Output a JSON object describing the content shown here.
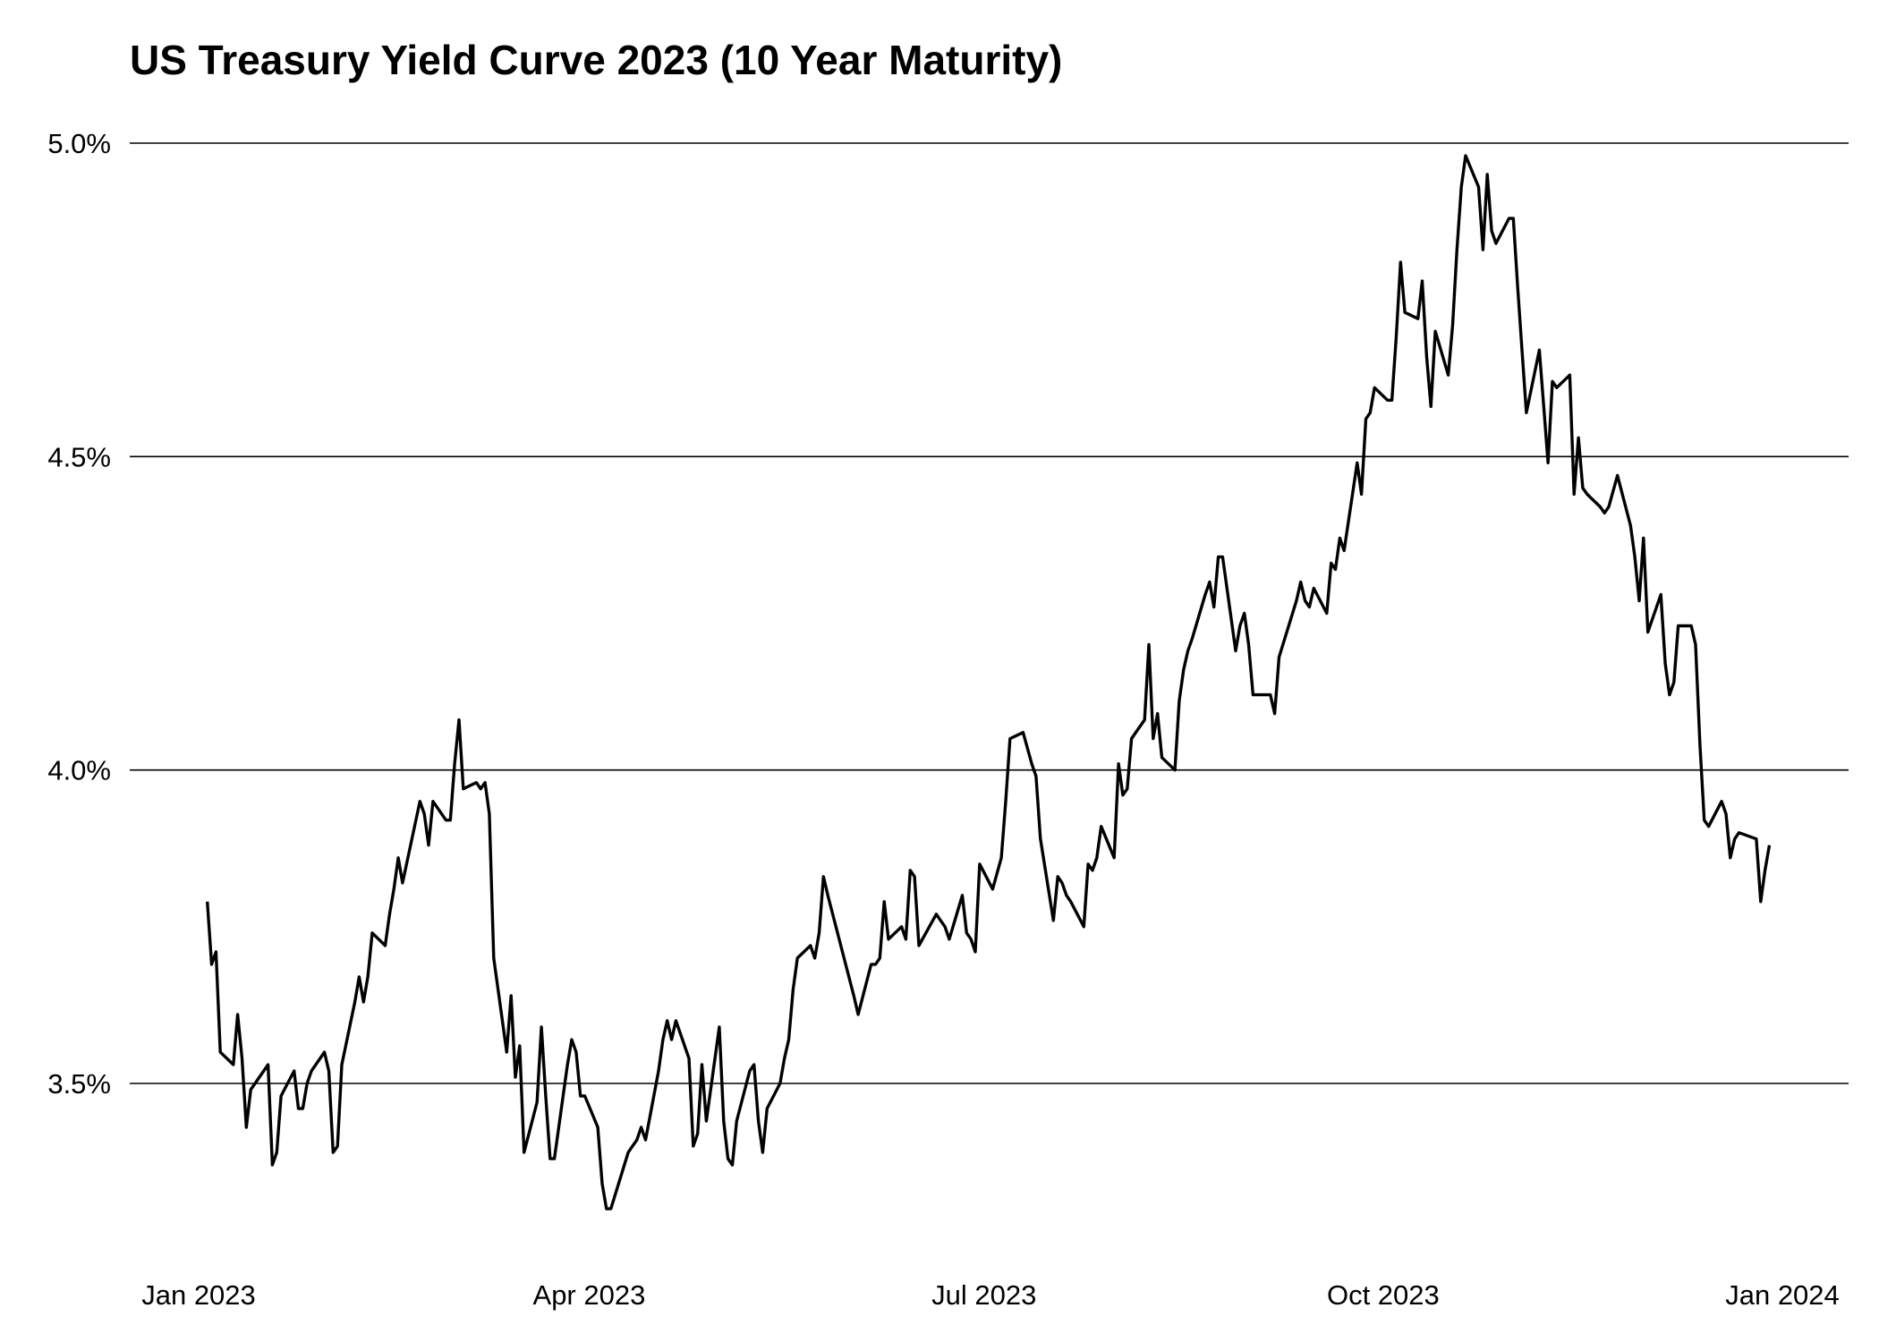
{
  "chart_data": {
    "type": "line",
    "title": "US Treasury Yield Curve 2023 (10 Year Maturity)",
    "xlabel": "",
    "ylabel": "",
    "x_range": [
      "2023-01-01",
      "2024-01-01"
    ],
    "ylim": [
      3.29,
      5.02
    ],
    "grid": "horizontal",
    "line_color": "#000000",
    "x_ticks": [
      {
        "date": "2023-01-01",
        "label": "Jan 2023"
      },
      {
        "date": "2023-04-01",
        "label": "Apr 2023"
      },
      {
        "date": "2023-07-01",
        "label": "Jul 2023"
      },
      {
        "date": "2023-10-01",
        "label": "Oct 2023"
      },
      {
        "date": "2024-01-01",
        "label": "Jan 2024"
      }
    ],
    "y_ticks": [
      {
        "value": 3.5,
        "label": "3.5%"
      },
      {
        "value": 4.0,
        "label": "4.0%"
      },
      {
        "value": 4.5,
        "label": "4.5%"
      },
      {
        "value": 5.0,
        "label": "5.0%"
      }
    ],
    "series": [
      {
        "points": [
          [
            "2023-01-03",
            3.79
          ],
          [
            "2023-01-04",
            3.69
          ],
          [
            "2023-01-05",
            3.71
          ],
          [
            "2023-01-06",
            3.55
          ],
          [
            "2023-01-09",
            3.53
          ],
          [
            "2023-01-10",
            3.61
          ],
          [
            "2023-01-11",
            3.54
          ],
          [
            "2023-01-12",
            3.43
          ],
          [
            "2023-01-13",
            3.49
          ],
          [
            "2023-01-17",
            3.53
          ],
          [
            "2023-01-18",
            3.37
          ],
          [
            "2023-01-19",
            3.39
          ],
          [
            "2023-01-20",
            3.48
          ],
          [
            "2023-01-23",
            3.52
          ],
          [
            "2023-01-24",
            3.46
          ],
          [
            "2023-01-25",
            3.46
          ],
          [
            "2023-01-26",
            3.5
          ],
          [
            "2023-01-27",
            3.52
          ],
          [
            "2023-01-30",
            3.55
          ],
          [
            "2023-01-31",
            3.52
          ],
          [
            "2023-02-01",
            3.39
          ],
          [
            "2023-02-02",
            3.4
          ],
          [
            "2023-02-03",
            3.53
          ],
          [
            "2023-02-06",
            3.63
          ],
          [
            "2023-02-07",
            3.67
          ],
          [
            "2023-02-08",
            3.63
          ],
          [
            "2023-02-09",
            3.67
          ],
          [
            "2023-02-10",
            3.74
          ],
          [
            "2023-02-13",
            3.72
          ],
          [
            "2023-02-14",
            3.77
          ],
          [
            "2023-02-15",
            3.81
          ],
          [
            "2023-02-16",
            3.86
          ],
          [
            "2023-02-17",
            3.82
          ],
          [
            "2023-02-21",
            3.95
          ],
          [
            "2023-02-22",
            3.93
          ],
          [
            "2023-02-23",
            3.88
          ],
          [
            "2023-02-24",
            3.95
          ],
          [
            "2023-02-27",
            3.92
          ],
          [
            "2023-02-28",
            3.92
          ],
          [
            "2023-03-01",
            4.01
          ],
          [
            "2023-03-02",
            4.08
          ],
          [
            "2023-03-03",
            3.97
          ],
          [
            "2023-03-06",
            3.98
          ],
          [
            "2023-03-07",
            3.97
          ],
          [
            "2023-03-08",
            3.98
          ],
          [
            "2023-03-09",
            3.93
          ],
          [
            "2023-03-10",
            3.7
          ],
          [
            "2023-03-13",
            3.55
          ],
          [
            "2023-03-14",
            3.64
          ],
          [
            "2023-03-15",
            3.51
          ],
          [
            "2023-03-16",
            3.56
          ],
          [
            "2023-03-17",
            3.39
          ],
          [
            "2023-03-20",
            3.47
          ],
          [
            "2023-03-21",
            3.59
          ],
          [
            "2023-03-22",
            3.48
          ],
          [
            "2023-03-23",
            3.38
          ],
          [
            "2023-03-24",
            3.38
          ],
          [
            "2023-03-27",
            3.53
          ],
          [
            "2023-03-28",
            3.57
          ],
          [
            "2023-03-29",
            3.55
          ],
          [
            "2023-03-30",
            3.48
          ],
          [
            "2023-03-31",
            3.48
          ],
          [
            "2023-04-03",
            3.43
          ],
          [
            "2023-04-04",
            3.34
          ],
          [
            "2023-04-05",
            3.3
          ],
          [
            "2023-04-06",
            3.3
          ],
          [
            "2023-04-10",
            3.39
          ],
          [
            "2023-04-11",
            3.4
          ],
          [
            "2023-04-12",
            3.41
          ],
          [
            "2023-04-13",
            3.43
          ],
          [
            "2023-04-14",
            3.41
          ],
          [
            "2023-04-17",
            3.52
          ],
          [
            "2023-04-18",
            3.57
          ],
          [
            "2023-04-19",
            3.6
          ],
          [
            "2023-04-20",
            3.57
          ],
          [
            "2023-04-21",
            3.6
          ],
          [
            "2023-04-24",
            3.54
          ],
          [
            "2023-04-25",
            3.4
          ],
          [
            "2023-04-26",
            3.42
          ],
          [
            "2023-04-27",
            3.53
          ],
          [
            "2023-04-28",
            3.44
          ],
          [
            "2023-05-01",
            3.59
          ],
          [
            "2023-05-02",
            3.44
          ],
          [
            "2023-05-03",
            3.38
          ],
          [
            "2023-05-04",
            3.37
          ],
          [
            "2023-05-05",
            3.44
          ],
          [
            "2023-05-08",
            3.52
          ],
          [
            "2023-05-09",
            3.53
          ],
          [
            "2023-05-10",
            3.44
          ],
          [
            "2023-05-11",
            3.39
          ],
          [
            "2023-05-12",
            3.46
          ],
          [
            "2023-05-15",
            3.5
          ],
          [
            "2023-05-16",
            3.54
          ],
          [
            "2023-05-17",
            3.57
          ],
          [
            "2023-05-18",
            3.65
          ],
          [
            "2023-05-19",
            3.7
          ],
          [
            "2023-05-22",
            3.72
          ],
          [
            "2023-05-23",
            3.7
          ],
          [
            "2023-05-24",
            3.74
          ],
          [
            "2023-05-25",
            3.83
          ],
          [
            "2023-05-26",
            3.8
          ],
          [
            "2023-06-01",
            3.64
          ],
          [
            "2023-06-02",
            3.61
          ],
          [
            "2023-06-05",
            3.69
          ],
          [
            "2023-06-06",
            3.69
          ],
          [
            "2023-06-07",
            3.7
          ],
          [
            "2023-06-08",
            3.79
          ],
          [
            "2023-06-09",
            3.73
          ],
          [
            "2023-06-12",
            3.75
          ],
          [
            "2023-06-13",
            3.73
          ],
          [
            "2023-06-14",
            3.84
          ],
          [
            "2023-06-15",
            3.83
          ],
          [
            "2023-06-16",
            3.72
          ],
          [
            "2023-06-20",
            3.77
          ],
          [
            "2023-06-21",
            3.76
          ],
          [
            "2023-06-22",
            3.75
          ],
          [
            "2023-06-23",
            3.73
          ],
          [
            "2023-06-26",
            3.8
          ],
          [
            "2023-06-27",
            3.74
          ],
          [
            "2023-06-28",
            3.73
          ],
          [
            "2023-06-29",
            3.71
          ],
          [
            "2023-06-30",
            3.85
          ],
          [
            "2023-07-03",
            3.81
          ],
          [
            "2023-07-05",
            3.86
          ],
          [
            "2023-07-06",
            3.95
          ],
          [
            "2023-07-07",
            4.05
          ],
          [
            "2023-07-10",
            4.06
          ],
          [
            "2023-07-12",
            4.01
          ],
          [
            "2023-07-13",
            3.99
          ],
          [
            "2023-07-14",
            3.89
          ],
          [
            "2023-07-17",
            3.76
          ],
          [
            "2023-07-18",
            3.83
          ],
          [
            "2023-07-19",
            3.82
          ],
          [
            "2023-07-20",
            3.8
          ],
          [
            "2023-07-21",
            3.79
          ],
          [
            "2023-07-24",
            3.75
          ],
          [
            "2023-07-25",
            3.85
          ],
          [
            "2023-07-26",
            3.84
          ],
          [
            "2023-07-27",
            3.86
          ],
          [
            "2023-07-28",
            3.91
          ],
          [
            "2023-07-31",
            3.86
          ],
          [
            "2023-08-01",
            4.01
          ],
          [
            "2023-08-02",
            3.96
          ],
          [
            "2023-08-03",
            3.97
          ],
          [
            "2023-08-04",
            4.05
          ],
          [
            "2023-08-07",
            4.08
          ],
          [
            "2023-08-08",
            4.2
          ],
          [
            "2023-08-09",
            4.05
          ],
          [
            "2023-08-10",
            4.09
          ],
          [
            "2023-08-11",
            4.02
          ],
          [
            "2023-08-14",
            4.0
          ],
          [
            "2023-08-15",
            4.11
          ],
          [
            "2023-08-16",
            4.16
          ],
          [
            "2023-08-17",
            4.19
          ],
          [
            "2023-08-18",
            4.21
          ],
          [
            "2023-08-21",
            4.28
          ],
          [
            "2023-08-22",
            4.3
          ],
          [
            "2023-08-23",
            4.26
          ],
          [
            "2023-08-24",
            4.34
          ],
          [
            "2023-08-25",
            4.34
          ],
          [
            "2023-08-28",
            4.19
          ],
          [
            "2023-08-29",
            4.23
          ],
          [
            "2023-08-30",
            4.25
          ],
          [
            "2023-08-31",
            4.2
          ],
          [
            "2023-09-01",
            4.12
          ],
          [
            "2023-09-05",
            4.12
          ],
          [
            "2023-09-06",
            4.09
          ],
          [
            "2023-09-07",
            4.18
          ],
          [
            "2023-09-11",
            4.27
          ],
          [
            "2023-09-12",
            4.3
          ],
          [
            "2023-09-13",
            4.27
          ],
          [
            "2023-09-14",
            4.26
          ],
          [
            "2023-09-15",
            4.29
          ],
          [
            "2023-09-18",
            4.25
          ],
          [
            "2023-09-19",
            4.33
          ],
          [
            "2023-09-20",
            4.32
          ],
          [
            "2023-09-21",
            4.37
          ],
          [
            "2023-09-22",
            4.35
          ],
          [
            "2023-09-25",
            4.49
          ],
          [
            "2023-09-26",
            4.44
          ],
          [
            "2023-09-27",
            4.56
          ],
          [
            "2023-09-28",
            4.57
          ],
          [
            "2023-09-29",
            4.61
          ],
          [
            "2023-10-02",
            4.59
          ],
          [
            "2023-10-03",
            4.59
          ],
          [
            "2023-10-04",
            4.69
          ],
          [
            "2023-10-05",
            4.81
          ],
          [
            "2023-10-06",
            4.73
          ],
          [
            "2023-10-09",
            4.72
          ],
          [
            "2023-10-10",
            4.78
          ],
          [
            "2023-10-11",
            4.66
          ],
          [
            "2023-10-12",
            4.58
          ],
          [
            "2023-10-13",
            4.7
          ],
          [
            "2023-10-16",
            4.63
          ],
          [
            "2023-10-17",
            4.71
          ],
          [
            "2023-10-18",
            4.83
          ],
          [
            "2023-10-19",
            4.93
          ],
          [
            "2023-10-20",
            4.98
          ],
          [
            "2023-10-23",
            4.93
          ],
          [
            "2023-10-24",
            4.83
          ],
          [
            "2023-10-25",
            4.95
          ],
          [
            "2023-10-26",
            4.86
          ],
          [
            "2023-10-27",
            4.84
          ],
          [
            "2023-10-30",
            4.88
          ],
          [
            "2023-10-31",
            4.88
          ],
          [
            "2023-11-01",
            4.77
          ],
          [
            "2023-11-02",
            4.67
          ],
          [
            "2023-11-03",
            4.57
          ],
          [
            "2023-11-06",
            4.67
          ],
          [
            "2023-11-07",
            4.58
          ],
          [
            "2023-11-08",
            4.49
          ],
          [
            "2023-11-09",
            4.62
          ],
          [
            "2023-11-10",
            4.61
          ],
          [
            "2023-11-13",
            4.63
          ],
          [
            "2023-11-14",
            4.44
          ],
          [
            "2023-11-15",
            4.53
          ],
          [
            "2023-11-16",
            4.45
          ],
          [
            "2023-11-17",
            4.44
          ],
          [
            "2023-11-20",
            4.42
          ],
          [
            "2023-11-21",
            4.41
          ],
          [
            "2023-11-22",
            4.42
          ],
          [
            "2023-11-24",
            4.47
          ],
          [
            "2023-11-27",
            4.39
          ],
          [
            "2023-11-28",
            4.34
          ],
          [
            "2023-11-29",
            4.27
          ],
          [
            "2023-11-30",
            4.37
          ],
          [
            "2023-12-01",
            4.22
          ],
          [
            "2023-12-04",
            4.28
          ],
          [
            "2023-12-05",
            4.17
          ],
          [
            "2023-12-06",
            4.12
          ],
          [
            "2023-12-07",
            4.14
          ],
          [
            "2023-12-08",
            4.23
          ],
          [
            "2023-12-11",
            4.23
          ],
          [
            "2023-12-12",
            4.2
          ],
          [
            "2023-12-13",
            4.04
          ],
          [
            "2023-12-14",
            3.92
          ],
          [
            "2023-12-15",
            3.91
          ],
          [
            "2023-12-18",
            3.95
          ],
          [
            "2023-12-19",
            3.93
          ],
          [
            "2023-12-20",
            3.86
          ],
          [
            "2023-12-21",
            3.89
          ],
          [
            "2023-12-22",
            3.9
          ],
          [
            "2023-12-26",
            3.89
          ],
          [
            "2023-12-27",
            3.79
          ],
          [
            "2023-12-28",
            3.84
          ],
          [
            "2023-12-29",
            3.88
          ]
        ]
      }
    ]
  }
}
